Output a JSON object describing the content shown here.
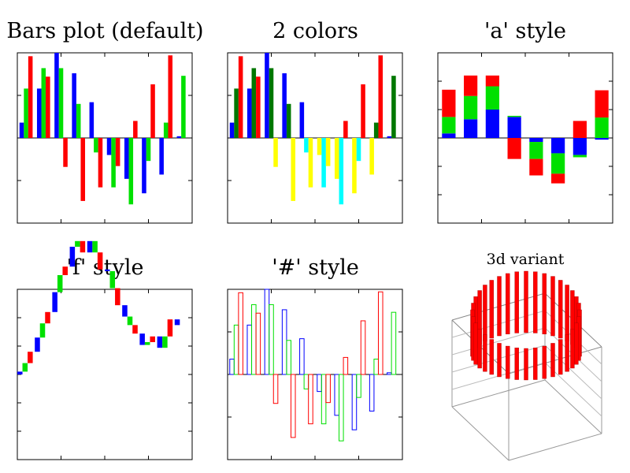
{
  "colors": {
    "blue": "#0000ff",
    "red": "#ff0000",
    "green": "#00e000",
    "dark_green": "#007700",
    "yellow": "#ffff00",
    "cyan": "#00ffff"
  },
  "chart_data": [
    {
      "type": "bar",
      "title": "Bars plot (default)",
      "style": "grouped",
      "ylim": [
        -1,
        1
      ],
      "series": [
        {
          "color": "#0000ff",
          "values": [
            0.18,
            0.58,
            1.0,
            0.76,
            0.42,
            -0.2,
            -0.48,
            -0.65,
            -0.43,
            0.02
          ]
        },
        {
          "color": "#00e000",
          "values": [
            0.58,
            0.82,
            0.82,
            0.4,
            -0.17,
            -0.58,
            -0.78,
            -0.27,
            0.18,
            0.73
          ]
        },
        {
          "color": "#ff0000",
          "values": [
            0.96,
            0.72,
            -0.34,
            -0.74,
            -0.58,
            -0.33,
            0.2,
            0.63,
            0.97
          ]
        }
      ]
    },
    {
      "type": "bar",
      "title": "2 colors",
      "style": "grouped, positive / negative colors",
      "ylim": [
        -1,
        1
      ],
      "series": [
        {
          "color_pos": "#0000ff",
          "color_neg": "#ffff00",
          "values": [
            0.18,
            0.58,
            1.0,
            0.76,
            0.42,
            -0.2,
            -0.48,
            -0.65,
            -0.43,
            0.02
          ]
        },
        {
          "color_pos": "#007700",
          "color_neg": "#00ffff",
          "values": [
            0.58,
            0.82,
            0.82,
            0.4,
            -0.17,
            -0.58,
            -0.78,
            -0.27,
            0.18,
            0.73
          ]
        },
        {
          "color_pos": "#ff0000",
          "color_neg": "#ffff00",
          "values": [
            0.96,
            0.72,
            -0.34,
            -0.74,
            -0.58,
            -0.33,
            0.2,
            0.63,
            0.97
          ]
        }
      ]
    },
    {
      "type": "bar",
      "title": "'a' style",
      "style": "stacked",
      "ylim": [
        -1.5,
        1.5
      ],
      "series": [
        {
          "color": "#0000ff",
          "values": [
            0.08,
            0.33,
            0.5,
            0.37,
            -0.07,
            -0.27,
            -0.3,
            -0.03
          ]
        },
        {
          "color": "#00e000",
          "values": [
            0.29,
            0.41,
            0.41,
            0.02,
            -0.3,
            -0.36,
            -0.04,
            0.36
          ]
        },
        {
          "color": "#ff0000",
          "values": [
            0.48,
            0.36,
            0.19,
            -0.37,
            -0.29,
            -0.17,
            0.3,
            0.48
          ]
        }
      ]
    },
    {
      "type": "bar",
      "title": "'f' style",
      "style": "waterfall",
      "ylim": [
        -1.5,
        1.5
      ],
      "series": [
        {
          "color": "#0000ff",
          "values": [
            0.05,
            0.25,
            0.35,
            0.35,
            0.2,
            -0.03,
            -0.2,
            -0.2,
            -0.2,
            -0.1
          ]
        },
        {
          "color": "#00e000",
          "values": [
            0.15,
            0.25,
            0.3,
            0.1,
            -0.2,
            -0.3,
            -0.15,
            0.05,
            0.2
          ]
        },
        {
          "color": "#ff0000",
          "values": [
            0.2,
            0.2,
            0.15,
            -0.2,
            -0.3,
            -0.3,
            -0.15,
            0.1,
            0.3
          ]
        }
      ]
    },
    {
      "type": "bar",
      "title": "'#' style",
      "style": "outlined, no fill",
      "ylim": [
        -1,
        1
      ],
      "series": [
        {
          "color": "#0000ff",
          "values": [
            0.18,
            0.58,
            1.0,
            0.76,
            0.42,
            -0.2,
            -0.48,
            -0.65,
            -0.43,
            0.02
          ]
        },
        {
          "color": "#00e000",
          "values": [
            0.58,
            0.82,
            0.82,
            0.4,
            -0.17,
            -0.58,
            -0.78,
            -0.27,
            0.18,
            0.73
          ]
        },
        {
          "color": "#ff0000",
          "values": [
            0.96,
            0.72,
            -0.34,
            -0.74,
            -0.58,
            -0.33,
            0.2,
            0.63,
            0.97
          ]
        }
      ]
    },
    {
      "type": "bar",
      "title": "3d variant",
      "style": "3d bars on a circle",
      "series": [
        {
          "color": "#ff0000"
        }
      ]
    }
  ]
}
